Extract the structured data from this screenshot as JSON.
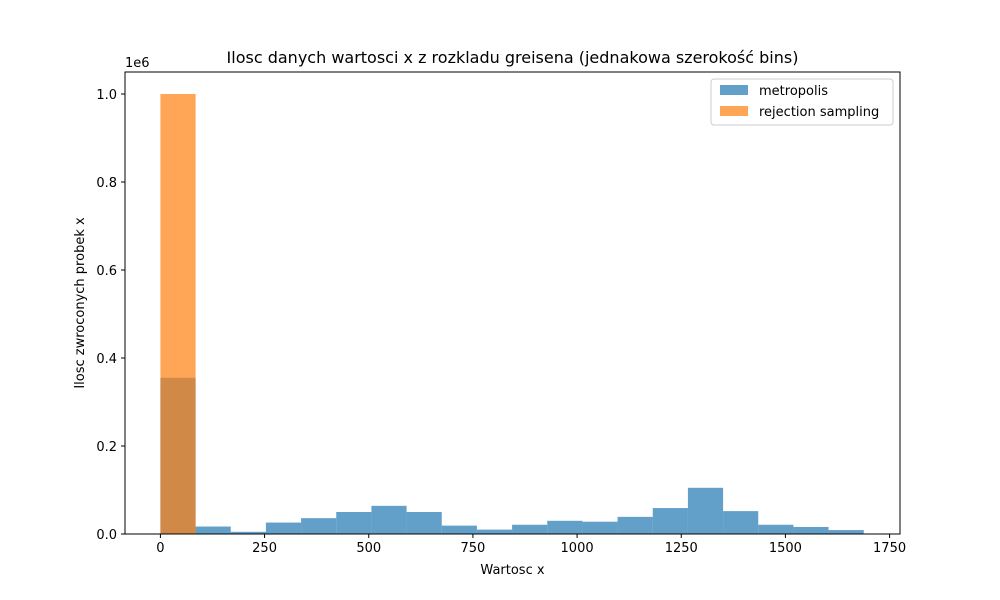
{
  "chart_data": {
    "type": "bar",
    "title": "Ilosc danych wartosci x z rozkladu greisena (jednakowa szerokość bins)",
    "xlabel": "Wartosc x",
    "ylabel": "Ilosc zwroconych probek x",
    "y_offset_label": "1e6",
    "xlim": [
      -85,
      1775
    ],
    "ylim": [
      0,
      1.05
    ],
    "x_ticks": [
      0,
      250,
      500,
      750,
      1000,
      1250,
      1500,
      1750
    ],
    "x_tick_labels": [
      "0",
      "250",
      "500",
      "750",
      "1000",
      "1250",
      "1500",
      "1750"
    ],
    "y_ticks": [
      0.0,
      0.2,
      0.4,
      0.6,
      0.8,
      1.0
    ],
    "y_tick_labels": [
      "0.0",
      "0.2",
      "0.4",
      "0.6",
      "0.8",
      "1.0"
    ],
    "bin_edges": [
      0,
      84.4,
      168.8,
      253.2,
      337.6,
      422,
      506.4,
      590.8,
      675.2,
      759.6,
      844,
      928.4,
      1012.8,
      1097.2,
      1181.6,
      1266,
      1350.4,
      1434.8,
      1519.2,
      1603.6,
      1688
    ],
    "series": [
      {
        "name": "metropolis",
        "color": "#1f77b4",
        "opacity": 0.7,
        "values": [
          0.355,
          0.017,
          0.005,
          0.026,
          0.036,
          0.05,
          0.064,
          0.05,
          0.019,
          0.01,
          0.021,
          0.03,
          0.028,
          0.039,
          0.059,
          0.105,
          0.052,
          0.021,
          0.016,
          0.009
        ]
      },
      {
        "name": "rejection sampling",
        "color": "#ff7f0e",
        "opacity": 0.7,
        "values": [
          1.0,
          0,
          0,
          0,
          0,
          0,
          0,
          0,
          0,
          0,
          0,
          0,
          0,
          0,
          0,
          0,
          0,
          0,
          0,
          0
        ]
      }
    ],
    "grid": false,
    "legend_position": "top-right"
  }
}
